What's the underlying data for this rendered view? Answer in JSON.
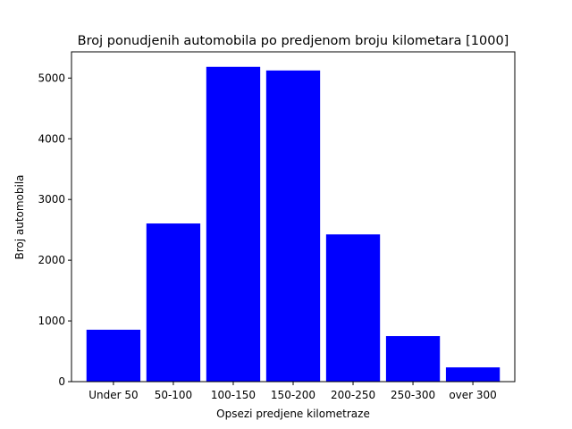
{
  "chart_data": {
    "type": "bar",
    "title": "Broj ponudjenih automobila po predjenom broju kilometara [1000]",
    "xlabel": "Opsezi predjene kilometraze",
    "ylabel": "Broj automobila",
    "categories": [
      "Under 50",
      "50-100",
      "100-150",
      "150-200",
      "200-250",
      "250-300",
      "over 300"
    ],
    "values": [
      855,
      2605,
      5185,
      5125,
      2425,
      750,
      235
    ],
    "ylim": [
      0,
      5432
    ],
    "yticks": [
      0,
      1000,
      2000,
      3000,
      4000,
      5000
    ],
    "bar_color": "#0000ff",
    "grid": false
  }
}
